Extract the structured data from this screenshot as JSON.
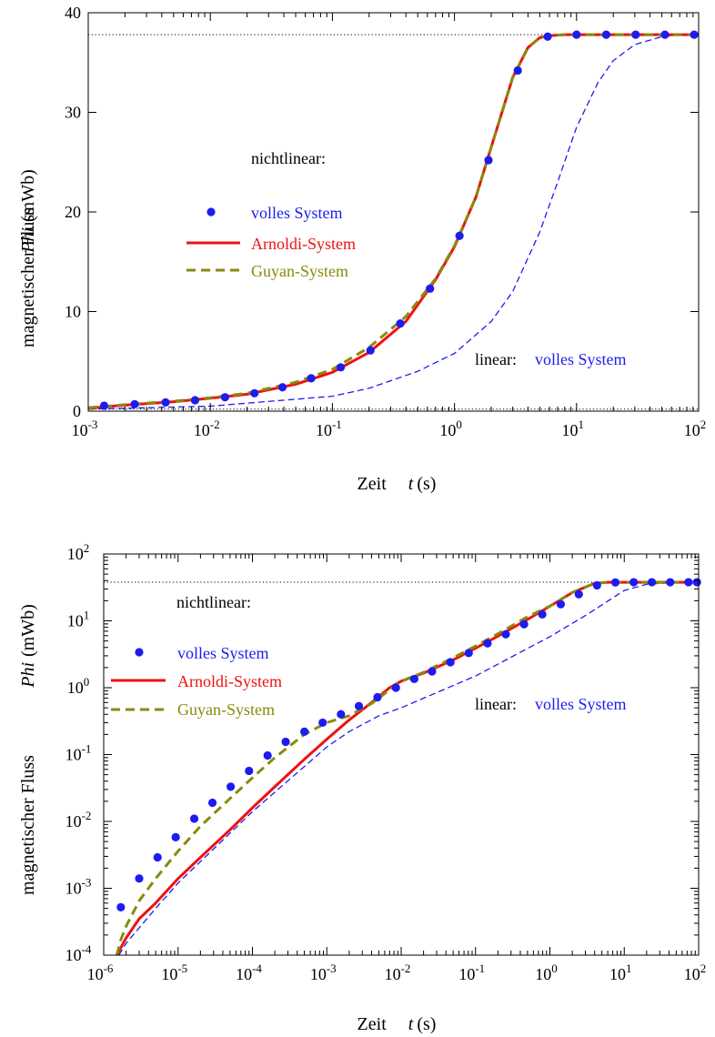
{
  "chart_data": [
    {
      "type": "line",
      "xscale": "log",
      "yscale": "linear",
      "xlim": [
        0.001,
        100
      ],
      "ylim": [
        0,
        40
      ],
      "xticks": [
        {
          "base": "10",
          "exp": "-3"
        },
        {
          "base": "10",
          "exp": "-2"
        },
        {
          "base": "10",
          "exp": "-1"
        },
        {
          "base": "10",
          "exp": "0"
        },
        {
          "base": "10",
          "exp": "1"
        },
        {
          "base": "10",
          "exp": "2"
        }
      ],
      "yticks": [
        "0",
        "10",
        "20",
        "30",
        "40"
      ],
      "xlabel": {
        "text": "Zeit",
        "var": "t",
        "unit": "(s)"
      },
      "ylabel": {
        "text": "magnetischer Fluss",
        "var": "Phi",
        "unit": "(mWb)"
      },
      "annotation_nonlinear": "nichtlinear:",
      "annotation_linear": "linear:",
      "annotation_linear_series": "volles System",
      "legend": [
        "volles System",
        "Arnoldi-System",
        "Guyan-System"
      ],
      "hlines": [
        0.2,
        37.8
      ],
      "series": [
        {
          "name": "volles System",
          "style": "dots",
          "color": "#1c1cf0",
          "x": [
            0.00135,
            0.0024,
            0.0043,
            0.0075,
            0.0132,
            0.023,
            0.039,
            0.067,
            0.117,
            0.205,
            0.36,
            0.63,
            1.1,
            1.9,
            3.3,
            5.8,
            10,
            17.5,
            30.5,
            53,
            92
          ],
          "y": [
            0.55,
            0.7,
            0.88,
            1.1,
            1.4,
            1.8,
            2.4,
            3.3,
            4.4,
            6.1,
            8.8,
            12.3,
            17.6,
            25.2,
            34.2,
            37.6,
            37.8,
            37.8,
            37.8,
            37.8,
            37.8
          ]
        },
        {
          "name": "Arnoldi-System",
          "style": "solid",
          "color": "#ee1111",
          "x": [
            0.001,
            0.002,
            0.005,
            0.01,
            0.02,
            0.05,
            0.1,
            0.2,
            0.4,
            0.7,
            1,
            1.5,
            2,
            3,
            4,
            5,
            6,
            8,
            10,
            100
          ],
          "y": [
            0.3,
            0.6,
            0.95,
            1.3,
            1.7,
            2.7,
            3.9,
            5.9,
            9.0,
            13.2,
            16.5,
            21.5,
            26.5,
            33.5,
            36.5,
            37.5,
            37.7,
            37.8,
            37.8,
            37.8
          ]
        },
        {
          "name": "Guyan-System",
          "style": "dashed",
          "color": "#8a8a0a",
          "x": [
            0.001,
            0.002,
            0.005,
            0.01,
            0.02,
            0.05,
            0.1,
            0.2,
            0.4,
            0.7,
            1,
            1.5,
            2,
            3,
            4,
            5,
            6,
            8,
            10,
            100
          ],
          "y": [
            0.35,
            0.65,
            1.0,
            1.35,
            1.8,
            2.9,
            4.2,
            6.4,
            9.5,
            13.3,
            16.6,
            21.5,
            26.5,
            33.5,
            36.5,
            37.5,
            37.7,
            37.8,
            37.8,
            37.8
          ]
        },
        {
          "name": "volles System (linear)",
          "style": "thin-dashed",
          "color": "#1c1cf0",
          "x": [
            0.001,
            0.01,
            0.1,
            0.2,
            0.5,
            1,
            2,
            3,
            5,
            7,
            10,
            15,
            20,
            30,
            50,
            70,
            100
          ],
          "y": [
            0.2,
            0.5,
            1.5,
            2.3,
            4.0,
            5.8,
            9.0,
            12.0,
            18.0,
            23.0,
            28.5,
            33.0,
            35.2,
            36.8,
            37.6,
            37.8,
            37.8
          ]
        }
      ]
    },
    {
      "type": "line",
      "xscale": "log",
      "yscale": "log",
      "xlim": [
        1e-06,
        100
      ],
      "ylim": [
        0.0001,
        100
      ],
      "xticks": [
        {
          "base": "10",
          "exp": "-6"
        },
        {
          "base": "10",
          "exp": "-5"
        },
        {
          "base": "10",
          "exp": "-4"
        },
        {
          "base": "10",
          "exp": "-3"
        },
        {
          "base": "10",
          "exp": "-2"
        },
        {
          "base": "10",
          "exp": "-1"
        },
        {
          "base": "10",
          "exp": "0"
        },
        {
          "base": "10",
          "exp": "1"
        },
        {
          "base": "10",
          "exp": "2"
        }
      ],
      "yticks": [
        {
          "base": "10",
          "exp": "-4"
        },
        {
          "base": "10",
          "exp": "-3"
        },
        {
          "base": "10",
          "exp": "-2"
        },
        {
          "base": "10",
          "exp": "-1"
        },
        {
          "base": "10",
          "exp": "0"
        },
        {
          "base": "10",
          "exp": "1"
        },
        {
          "base": "10",
          "exp": "2"
        }
      ],
      "xlabel": {
        "text": "Zeit",
        "var": "t",
        "unit": "(s)"
      },
      "ylabel": {
        "text": "magnetischer Fluss",
        "var": "Phi",
        "unit": "(mWb)"
      },
      "annotation_nonlinear": "nichtlinear:",
      "annotation_linear": "linear:",
      "annotation_linear_series": "volles System",
      "legend": [
        "volles System",
        "Arnoldi-System",
        "Guyan-System"
      ],
      "hlines": [
        37.8
      ],
      "series": [
        {
          "name": "volles System",
          "style": "dots",
          "color": "#1c1cf0",
          "x": [
            1.7e-06,
            3e-06,
            5.3e-06,
            9.3e-06,
            1.65e-05,
            2.9e-05,
            5.1e-05,
            9e-05,
            0.00016,
            0.00028,
            0.0005,
            0.00088,
            0.00155,
            0.0027,
            0.0048,
            0.0085,
            0.015,
            0.026,
            0.046,
            0.081,
            0.145,
            0.255,
            0.45,
            0.79,
            1.4,
            2.45,
            4.3,
            7.6,
            13.4,
            23.5,
            41.5,
            73,
            95
          ],
          "y": [
            0.00052,
            0.0014,
            0.0029,
            0.0058,
            0.011,
            0.019,
            0.033,
            0.057,
            0.097,
            0.155,
            0.22,
            0.3,
            0.4,
            0.53,
            0.72,
            1.0,
            1.35,
            1.75,
            2.4,
            3.3,
            4.6,
            6.3,
            8.9,
            12.5,
            17.7,
            25,
            34,
            37.5,
            37.8,
            37.8,
            37.8,
            37.8,
            37.8
          ]
        },
        {
          "name": "Arnoldi-System",
          "style": "solid",
          "color": "#ee1111",
          "x": [
            1.5e-06,
            2e-06,
            3e-06,
            5e-06,
            1e-05,
            2e-05,
            5e-05,
            0.0001,
            0.0002,
            0.0005,
            0.001,
            0.002,
            0.004,
            0.007,
            0.01,
            0.02,
            0.05,
            0.1,
            0.2,
            0.5,
            1,
            2,
            4,
            6,
            10,
            100
          ],
          "y": [
            0.0001,
            0.00018,
            0.00035,
            0.0006,
            0.0014,
            0.0029,
            0.0075,
            0.016,
            0.033,
            0.085,
            0.17,
            0.33,
            0.6,
            1.0,
            1.25,
            1.65,
            2.6,
            3.9,
            5.9,
            10.5,
            16.5,
            26.5,
            36.5,
            37.7,
            37.8,
            37.8
          ]
        },
        {
          "name": "Guyan-System",
          "style": "dashed",
          "color": "#8a8a0a",
          "x": [
            1.5e-06,
            1.7e-06,
            2e-06,
            3e-06,
            5e-06,
            1e-05,
            2e-05,
            5e-05,
            0.0001,
            0.0002,
            0.0005,
            0.001,
            0.002,
            0.004,
            0.007,
            0.01,
            0.02,
            0.05,
            0.1,
            0.2,
            0.5,
            1,
            2,
            4,
            6,
            10,
            100
          ],
          "y": [
            0.0001,
            0.00017,
            0.00027,
            0.00065,
            0.0014,
            0.0036,
            0.0085,
            0.022,
            0.045,
            0.09,
            0.2,
            0.3,
            0.38,
            0.58,
            0.93,
            1.25,
            1.7,
            2.8,
            4.2,
            6.4,
            11.5,
            16.6,
            26.5,
            36.5,
            37.7,
            37.8,
            37.8
          ]
        },
        {
          "name": "volles System (linear)",
          "style": "thin-dashed",
          "color": "#1c1cf0",
          "x": [
            1.6e-06,
            2e-06,
            5e-06,
            1e-05,
            0.0001,
            0.001,
            0.002,
            0.005,
            0.01,
            0.1,
            1,
            3,
            10,
            20,
            50,
            100
          ],
          "y": [
            0.0001,
            0.00015,
            0.0005,
            0.0012,
            0.014,
            0.13,
            0.22,
            0.38,
            0.5,
            1.5,
            5.8,
            12,
            28.5,
            35.2,
            37.6,
            37.8
          ]
        }
      ]
    }
  ]
}
